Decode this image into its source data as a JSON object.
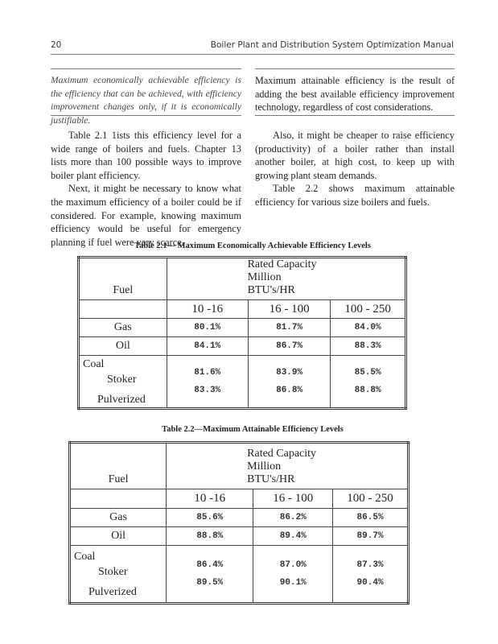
{
  "header": {
    "page_number": "20",
    "running_title": "Boiler Plant and Distribution System Optimization Manual"
  },
  "definitions": {
    "left": "Maximum economically achievable efficiency is the efficiency that can be achieved, with efficiency improvement changes only, if it is economically justifiable.",
    "right": "Maximum attainable efficiency is the result of adding the best available efficiency improvement technology, regardless of cost considerations."
  },
  "body": {
    "left_p1": "Table 2.1 1ists this efficiency level for a wide range of boilers and fuels. Chapter 13 lists more than 100 possible ways to improve boiler plant efficiency.",
    "left_p2": "Next, it might be necessary to know what the maximum efficiency of a boiler could be if considered. For example, knowing maximum efficiency would be useful for emergency planning if fuel were very scarce.",
    "right_p1": "Also, it might be cheaper to raise efficiency (productivity) of a boiler rather than install another boiler, at high cost, to keep up with growing plant steam demands.",
    "right_p2": "Table 2.2 shows maximum attainable efficiency for various size boilers and fuels."
  },
  "tables": [
    {
      "caption": "Table 2.1— Maximum Economically Achievable Efficiency Levels",
      "fuel_header": "Fuel",
      "capacity_header": [
        "Rated Capacity",
        "Million",
        "BTU's/HR"
      ],
      "ranges": [
        "10 -16",
        "16 - 100",
        "100 - 250"
      ],
      "rows": {
        "gas": {
          "label": "Gas",
          "values": [
            "80.1%",
            "81.7%",
            "84.0%"
          ]
        },
        "oil": {
          "label": "Oil",
          "values": [
            "84.1%",
            "86.7%",
            "88.3%"
          ]
        },
        "coal": {
          "label": "Coal",
          "stoker": {
            "label": "Stoker",
            "values": [
              "81.6%",
              "83.9%",
              "85.5%"
            ]
          },
          "pulverized": {
            "label": "Pulverized",
            "values": [
              "83.3%",
              "86.8%",
              "88.8%"
            ]
          }
        }
      }
    },
    {
      "caption": "Table 2.2—Maximum Attainable Efficiency Levels",
      "fuel_header": "Fuel",
      "capacity_header": [
        "Rated Capacity",
        "Million",
        "BTU's/HR"
      ],
      "ranges": [
        "10 -16",
        "16 - 100",
        "100 - 250"
      ],
      "rows": {
        "gas": {
          "label": "Gas",
          "values": [
            "85.6%",
            "86.2%",
            "86.5%"
          ]
        },
        "oil": {
          "label": "Oil",
          "values": [
            "88.8%",
            "89.4%",
            "89.7%"
          ]
        },
        "coal": {
          "label": "Coal",
          "stoker": {
            "label": "Stoker",
            "values": [
              "86.4%",
              "87.0%",
              "87.3%"
            ]
          },
          "pulverized": {
            "label": "Pulverized",
            "values": [
              "89.5%",
              "90.1%",
              "90.4%"
            ]
          }
        }
      }
    }
  ]
}
